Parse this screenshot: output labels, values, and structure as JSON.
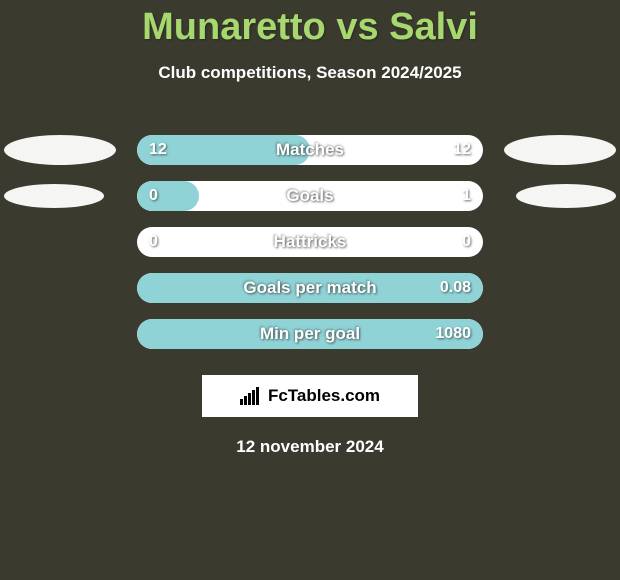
{
  "title": "Munaretto vs Salvi",
  "subtitle": "Club competitions, Season 2024/2025",
  "colors": {
    "accent": "#a6d86f",
    "bar_fill": "#8fd3d6",
    "bar_track": "#ffffff",
    "background": "#3a3a2f"
  },
  "rows": [
    {
      "label": "Matches",
      "left": "12",
      "right": "12",
      "fill_pct": 50,
      "ellipse_left": "big",
      "ellipse_right": "big"
    },
    {
      "label": "Goals",
      "left": "0",
      "right": "1",
      "fill_pct": 18,
      "ellipse_left": "small",
      "ellipse_right": "small"
    },
    {
      "label": "Hattricks",
      "left": "0",
      "right": "0",
      "fill_pct": 0,
      "ellipse_left": "",
      "ellipse_right": ""
    },
    {
      "label": "Goals per match",
      "left": "",
      "right": "0.08",
      "fill_pct": 100,
      "ellipse_left": "",
      "ellipse_right": ""
    },
    {
      "label": "Min per goal",
      "left": "",
      "right": "1080",
      "fill_pct": 100,
      "ellipse_left": "",
      "ellipse_right": ""
    }
  ],
  "brand": "FcTables.com",
  "date": "12 november 2024"
}
